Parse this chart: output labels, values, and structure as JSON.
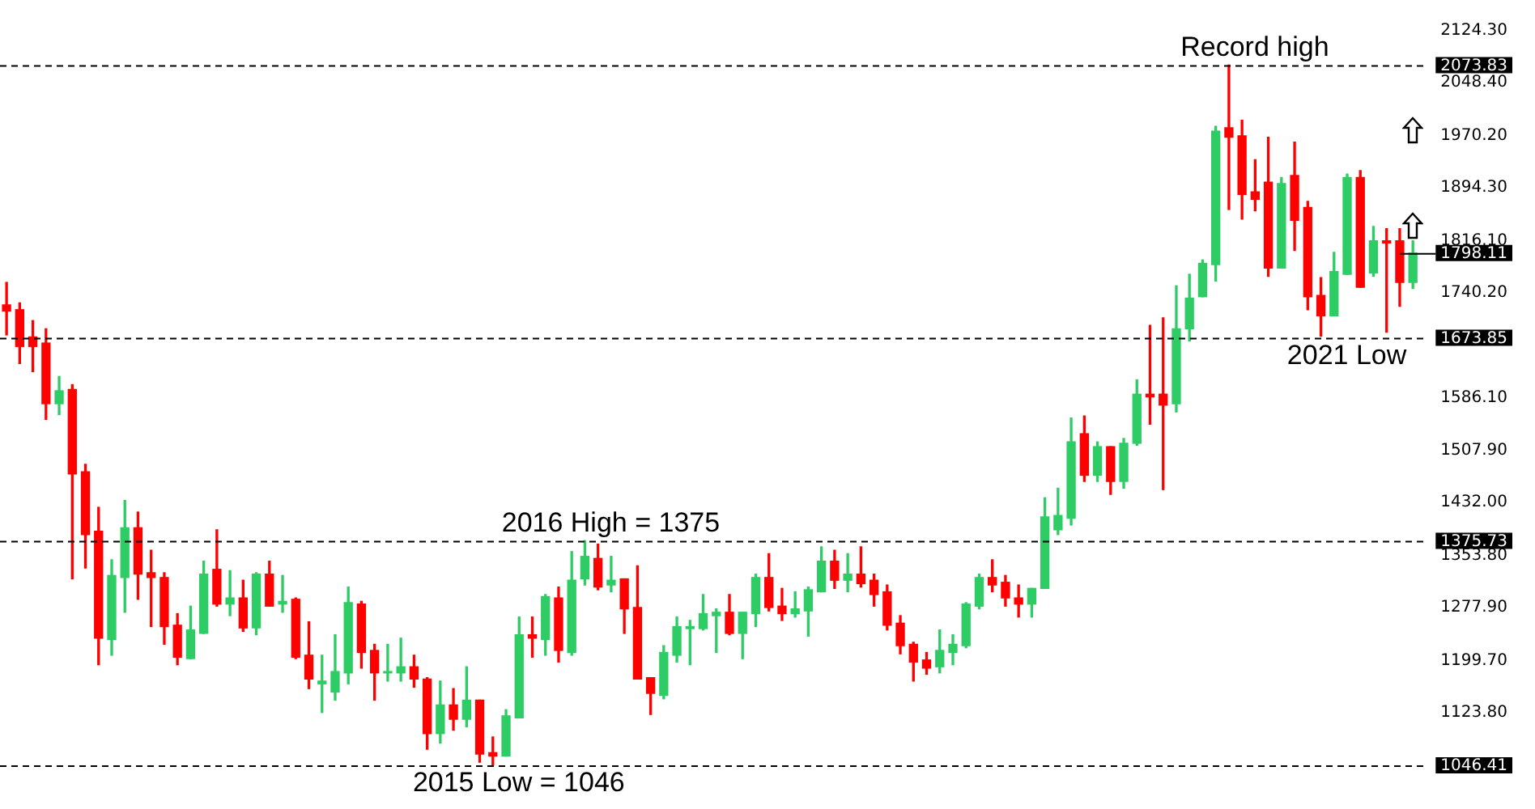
{
  "chart_data": {
    "type": "candlestick",
    "categories": [
      null,
      null,
      null,
      null,
      null,
      null,
      null,
      null,
      null,
      null,
      null,
      null,
      null,
      null,
      null,
      null,
      null,
      null,
      null,
      null,
      null,
      null,
      null,
      null,
      null,
      null,
      null,
      null,
      null,
      null,
      null,
      null,
      null,
      null,
      null,
      null,
      null,
      null,
      null,
      null,
      null,
      null,
      null,
      null,
      null,
      null,
      null,
      null,
      null,
      null,
      null,
      null,
      null,
      null,
      null,
      null,
      null,
      null,
      null,
      null,
      null,
      null,
      null,
      null,
      null,
      null,
      null,
      null,
      null,
      null,
      null,
      null,
      null,
      null,
      null,
      null,
      null,
      null,
      null,
      null,
      null,
      null,
      null,
      null,
      null,
      null,
      null,
      null,
      null,
      null,
      null,
      null,
      null,
      null,
      null,
      null,
      null,
      null,
      null,
      null,
      null,
      null,
      null,
      null,
      null,
      null,
      null,
      null
    ],
    "ohlc": [
      [
        1722,
        1755,
        1678,
        1713
      ],
      [
        1715,
        1725,
        1636,
        1661
      ],
      [
        1675,
        1699,
        1624,
        1661
      ],
      [
        1666,
        1687,
        1554,
        1577
      ],
      [
        1577,
        1617,
        1561,
        1596
      ],
      [
        1598,
        1605,
        1320,
        1474
      ],
      [
        1477,
        1488,
        1336,
        1385
      ],
      [
        1390,
        1425,
        1194,
        1233
      ],
      [
        1231,
        1348,
        1208,
        1325
      ],
      [
        1322,
        1435,
        1271,
        1395
      ],
      [
        1395,
        1418,
        1290,
        1327
      ],
      [
        1329,
        1362,
        1250,
        1322
      ],
      [
        1322,
        1329,
        1224,
        1250
      ],
      [
        1252,
        1269,
        1194,
        1205
      ],
      [
        1203,
        1280,
        1203,
        1245
      ],
      [
        1240,
        1346,
        1240,
        1327
      ],
      [
        1334,
        1392,
        1280,
        1283
      ],
      [
        1283,
        1332,
        1266,
        1292
      ],
      [
        1292,
        1318,
        1243,
        1248
      ],
      [
        1248,
        1329,
        1238,
        1327
      ],
      [
        1327,
        1346,
        1280,
        1280
      ],
      [
        1283,
        1325,
        1271,
        1287
      ],
      [
        1290,
        1292,
        1203,
        1205
      ],
      [
        1208,
        1257,
        1159,
        1173
      ],
      [
        1166,
        1208,
        1124,
        1170
      ],
      [
        1154,
        1238,
        1142,
        1184
      ],
      [
        1182,
        1308,
        1166,
        1285
      ],
      [
        1283,
        1287,
        1189,
        1212
      ],
      [
        1215,
        1224,
        1142,
        1182
      ],
      [
        1182,
        1224,
        1170,
        1184
      ],
      [
        1182,
        1233,
        1170,
        1191
      ],
      [
        1191,
        1208,
        1161,
        1173
      ],
      [
        1173,
        1175,
        1070,
        1093
      ],
      [
        1093,
        1170,
        1079,
        1135
      ],
      [
        1135,
        1159,
        1098,
        1114
      ],
      [
        1114,
        1191,
        1103,
        1142
      ],
      [
        1142,
        1142,
        1051,
        1063
      ],
      [
        1065,
        1088,
        1046,
        1060
      ],
      [
        1060,
        1128,
        1060,
        1119
      ],
      [
        1116,
        1264,
        1116,
        1238
      ],
      [
        1238,
        1264,
        1205,
        1233
      ],
      [
        1231,
        1297,
        1208,
        1294
      ],
      [
        1292,
        1308,
        1198,
        1215
      ],
      [
        1212,
        1360,
        1208,
        1318
      ],
      [
        1320,
        1376,
        1311,
        1353
      ],
      [
        1350,
        1371,
        1304,
        1308
      ],
      [
        1311,
        1353,
        1301,
        1318
      ],
      [
        1320,
        1320,
        1240,
        1276
      ],
      [
        1278,
        1339,
        1173,
        1173
      ],
      [
        1175,
        1175,
        1121,
        1152
      ],
      [
        1149,
        1222,
        1144,
        1212
      ],
      [
        1208,
        1264,
        1198,
        1250
      ],
      [
        1247,
        1259,
        1194,
        1250
      ],
      [
        1247,
        1297,
        1245,
        1269
      ],
      [
        1266,
        1276,
        1212,
        1271
      ],
      [
        1271,
        1297,
        1238,
        1240
      ],
      [
        1240,
        1271,
        1203,
        1271
      ],
      [
        1269,
        1327,
        1250,
        1322
      ],
      [
        1322,
        1357,
        1273,
        1278
      ],
      [
        1280,
        1306,
        1259,
        1269
      ],
      [
        1269,
        1301,
        1264,
        1276
      ],
      [
        1273,
        1308,
        1236,
        1304
      ],
      [
        1301,
        1367,
        1301,
        1346
      ],
      [
        1346,
        1362,
        1306,
        1318
      ],
      [
        1318,
        1357,
        1301,
        1327
      ],
      [
        1327,
        1367,
        1308,
        1313
      ],
      [
        1318,
        1327,
        1280,
        1297
      ],
      [
        1301,
        1311,
        1245,
        1252
      ],
      [
        1255,
        1266,
        1210,
        1222
      ],
      [
        1224,
        1227,
        1170,
        1198
      ],
      [
        1201,
        1212,
        1180,
        1189
      ],
      [
        1191,
        1245,
        1182,
        1215
      ],
      [
        1212,
        1238,
        1194,
        1224
      ],
      [
        1222,
        1285,
        1219,
        1283
      ],
      [
        1280,
        1327,
        1276,
        1322
      ],
      [
        1322,
        1348,
        1301,
        1311
      ],
      [
        1315,
        1325,
        1280,
        1292
      ],
      [
        1292,
        1311,
        1264,
        1283
      ],
      [
        1283,
        1306,
        1264,
        1306
      ],
      [
        1306,
        1439,
        1306,
        1411
      ],
      [
        1392,
        1453,
        1385,
        1413
      ],
      [
        1409,
        1556,
        1399,
        1521
      ],
      [
        1533,
        1559,
        1463,
        1472
      ],
      [
        1472,
        1521,
        1463,
        1514
      ],
      [
        1514,
        1514,
        1444,
        1463
      ],
      [
        1463,
        1526,
        1453,
        1519
      ],
      [
        1519,
        1612,
        1516,
        1591
      ],
      [
        1591,
        1692,
        1547,
        1587
      ],
      [
        1591,
        1703,
        1451,
        1575
      ],
      [
        1577,
        1750,
        1565,
        1687
      ],
      [
        1687,
        1767,
        1669,
        1732
      ],
      [
        1734,
        1788,
        1734,
        1783
      ],
      [
        1781,
        1984,
        1757,
        1977
      ],
      [
        1982,
        2074,
        1862,
        1968
      ],
      [
        1970,
        1993,
        1848,
        1884
      ],
      [
        1888,
        1935,
        1860,
        1877
      ],
      [
        1902,
        1968,
        1764,
        1776
      ],
      [
        1776,
        1909,
        1776,
        1900
      ],
      [
        1912,
        1961,
        1802,
        1846
      ],
      [
        1865,
        1874,
        1715,
        1734
      ],
      [
        1736,
        1762,
        1676,
        1706
      ],
      [
        1706,
        1799,
        1706,
        1771
      ],
      [
        1767,
        1914,
        1767,
        1909
      ],
      [
        1909,
        1919,
        1748,
        1748
      ],
      [
        1769,
        1837,
        1764,
        1816
      ],
      [
        1816,
        1834,
        1682,
        1813
      ],
      [
        1816,
        1834,
        1720,
        1755
      ],
      [
        1755,
        1816,
        1746,
        1798
      ]
    ],
    "colors": [
      "#ff0000",
      "#ff0000",
      "#ff0000",
      "#ff0000",
      "#2ecc65",
      "#ff0000",
      "#ff0000",
      "#ff0000",
      "#2ecc65",
      "#2ecc65",
      "#ff0000",
      "#ff0000",
      "#ff0000",
      "#ff0000",
      "#2ecc65",
      "#2ecc65",
      "#ff0000",
      "#2ecc65",
      "#ff0000",
      "#2ecc65",
      "#ff0000",
      "#2ecc65",
      "#ff0000",
      "#ff0000",
      "#2ecc65",
      "#2ecc65",
      "#2ecc65",
      "#ff0000",
      "#ff0000",
      "#2ecc65",
      "#2ecc65",
      "#ff0000",
      "#ff0000",
      "#2ecc65",
      "#ff0000",
      "#2ecc65",
      "#ff0000",
      "#ff0000",
      "#2ecc65",
      "#2ecc65",
      "#ff0000",
      "#2ecc65",
      "#ff0000",
      "#2ecc65",
      "#2ecc65",
      "#ff0000",
      "#2ecc65",
      "#ff0000",
      "#ff0000",
      "#ff0000",
      "#2ecc65",
      "#2ecc65",
      "#2ecc65",
      "#2ecc65",
      "#2ecc65",
      "#ff0000",
      "#2ecc65",
      "#2ecc65",
      "#ff0000",
      "#ff0000",
      "#2ecc65",
      "#2ecc65",
      "#2ecc65",
      "#ff0000",
      "#2ecc65",
      "#ff0000",
      "#ff0000",
      "#ff0000",
      "#ff0000",
      "#ff0000",
      "#ff0000",
      "#2ecc65",
      "#2ecc65",
      "#2ecc65",
      "#2ecc65",
      "#ff0000",
      "#ff0000",
      "#ff0000",
      "#2ecc65",
      "#2ecc65",
      "#2ecc65",
      "#2ecc65",
      "#ff0000",
      "#2ecc65",
      "#ff0000",
      "#2ecc65",
      "#2ecc65",
      "#ff0000",
      "#ff0000",
      "#2ecc65",
      "#2ecc65",
      "#2ecc65",
      "#2ecc65",
      "#ff0000",
      "#ff0000",
      "#ff0000",
      "#ff0000",
      "#2ecc65",
      "#ff0000",
      "#ff0000",
      "#ff0000",
      "#2ecc65",
      "#2ecc65",
      "#ff0000",
      "#2ecc65",
      "#ff0000",
      "#ff0000",
      "#2ecc65"
    ],
    "ylim": [
      1046.41,
      2124.3
    ],
    "yticks": [
      {
        "value": 2124.3,
        "label": "2124.30"
      },
      {
        "value": 2048.4,
        "label": "2048.40"
      },
      {
        "value": 1970.2,
        "label": "1970.20"
      },
      {
        "value": 1894.3,
        "label": "1894.30"
      },
      {
        "value": 1816.1,
        "label": "1816.10"
      },
      {
        "value": 1740.2,
        "label": "1740.20"
      },
      {
        "value": 1586.1,
        "label": "1586.10"
      },
      {
        "value": 1507.9,
        "label": "1507.90"
      },
      {
        "value": 1432,
        "label": "1432.00"
      },
      {
        "value": 1353.8,
        "label": "1353.80"
      },
      {
        "value": 1277.9,
        "label": "1277.90"
      },
      {
        "value": 1199.7,
        "label": "1199.70"
      },
      {
        "value": 1123.8,
        "label": "1123.80"
      }
    ],
    "ref_lines": [
      {
        "axis": "y",
        "value": 2073.83,
        "label": "2073.83",
        "line_style": "dashed"
      },
      {
        "axis": "y",
        "value": 1673.85,
        "label": "1673.85",
        "line_style": "dashed"
      },
      {
        "axis": "y",
        "value": 1375.73,
        "label": "1375.73",
        "line_style": "dashed"
      },
      {
        "axis": "y",
        "value": 1046.41,
        "label": "1046.41",
        "line_style": "dashed"
      },
      {
        "axis": "y",
        "value": 1798.11,
        "label": "1798.11"
      }
    ],
    "annotations": [
      {
        "text": "Record high",
        "y": 2073.83
      },
      {
        "text": "2021 Low",
        "y": 1673.85
      },
      {
        "text": "2016 High = 1375",
        "y": 1375.73
      },
      {
        "text": "2015 Low = 1046",
        "y": 1046.41
      }
    ],
    "grid": false,
    "legend": false,
    "tick_labels": "y"
  }
}
